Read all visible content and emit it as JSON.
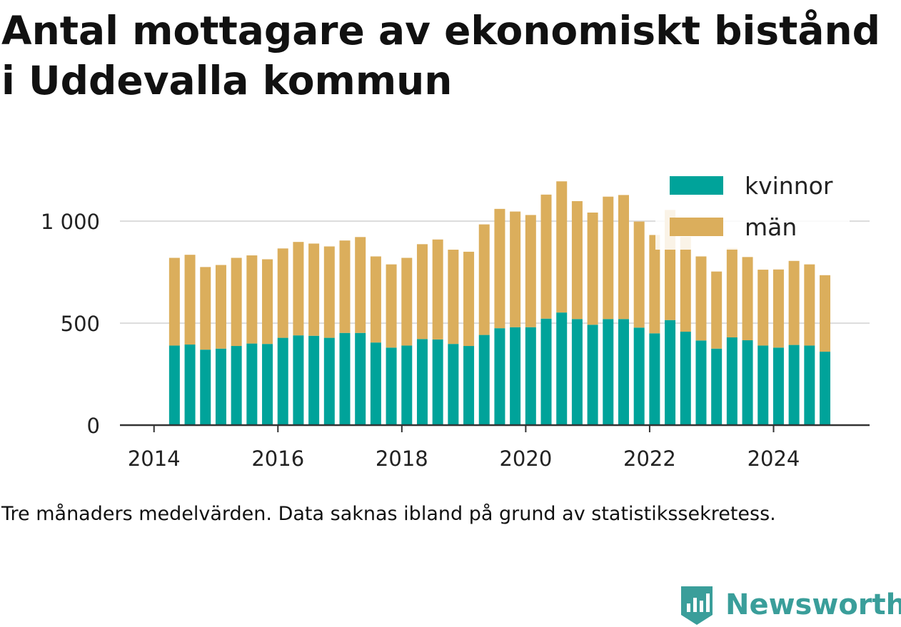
{
  "title": "Antal mottagare av ekonomiskt bistånd i Uddevalla kommun",
  "note": "Tre månaders medelvärden. Data saknas ibland på grund av statistikssekretess.",
  "brand": "Newsworthy",
  "colors": {
    "kvinnor": "#00a39a",
    "man": "#dbae5c",
    "grid": "#dddddd",
    "axis": "#333333",
    "brand": "#3a9e9a"
  },
  "chart_data": {
    "type": "bar",
    "stacked": true,
    "x_ticks": [
      "2014",
      "2016",
      "2018",
      "2020",
      "2022",
      "2024"
    ],
    "y_ticks": [
      {
        "value": 0,
        "label": "0"
      },
      {
        "value": 500,
        "label": "500"
      },
      {
        "value": 1000,
        "label": "1 000"
      }
    ],
    "ylim": [
      0,
      1240
    ],
    "xlim": [
      2013.45,
      2025.55
    ],
    "legend_position": "top-right",
    "grid": true,
    "x": [
      2014.33,
      2014.58,
      2014.83,
      2015.08,
      2015.33,
      2015.58,
      2015.83,
      2016.08,
      2016.33,
      2016.58,
      2016.83,
      2017.08,
      2017.33,
      2017.58,
      2017.83,
      2018.08,
      2018.33,
      2018.58,
      2018.83,
      2019.08,
      2019.33,
      2019.58,
      2019.83,
      2020.08,
      2020.33,
      2020.58,
      2020.83,
      2021.08,
      2021.33,
      2021.58,
      2021.83,
      2022.08,
      2022.33,
      2022.58,
      2022.83,
      2023.08,
      2023.33,
      2023.58,
      2023.83,
      2024.08,
      2024.33,
      2024.58,
      2024.83
    ],
    "series": [
      {
        "name": "kvinnor",
        "values": [
          390,
          395,
          370,
          375,
          388,
          400,
          398,
          428,
          440,
          438,
          428,
          452,
          452,
          405,
          380,
          390,
          422,
          420,
          398,
          388,
          442,
          475,
          480,
          480,
          522,
          552,
          520,
          492,
          520,
          520,
          478,
          450,
          515,
          458,
          415,
          375,
          430,
          416,
          390,
          380,
          393,
          390,
          360
        ]
      },
      {
        "name": "män",
        "values": [
          430,
          440,
          405,
          410,
          432,
          432,
          415,
          438,
          458,
          452,
          448,
          453,
          470,
          422,
          408,
          430,
          465,
          490,
          462,
          462,
          542,
          585,
          567,
          550,
          608,
          643,
          578,
          550,
          600,
          608,
          520,
          482,
          540,
          465,
          412,
          378,
          438,
          408,
          372,
          383,
          412,
          398,
          375
        ]
      }
    ]
  }
}
